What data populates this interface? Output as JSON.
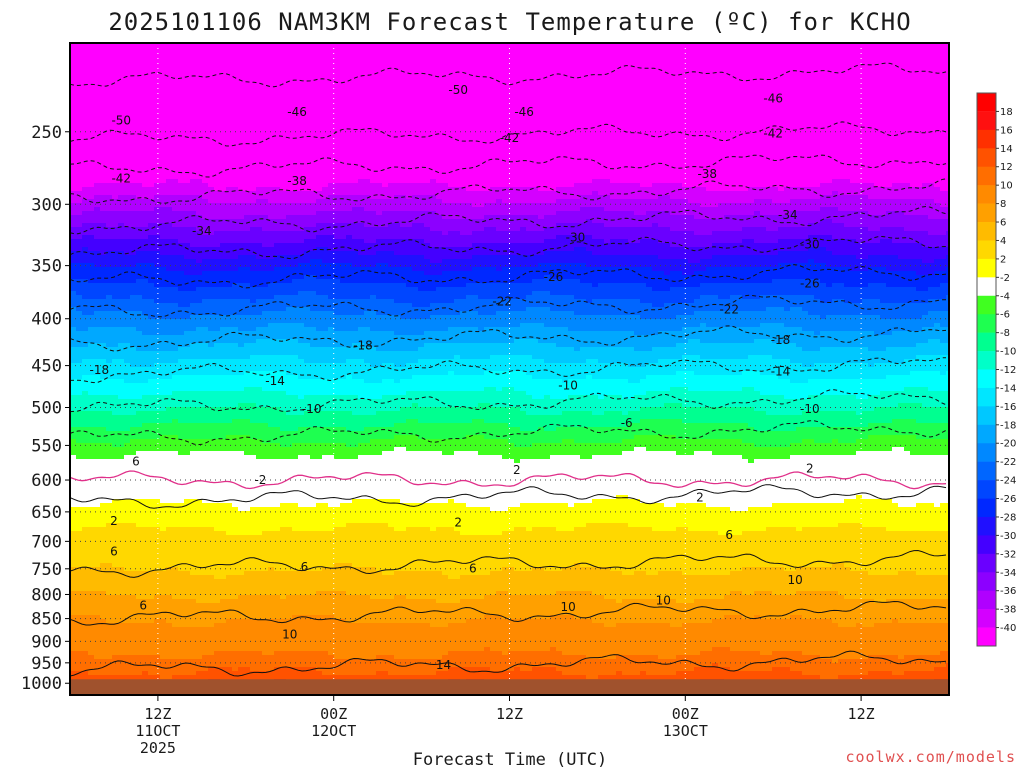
{
  "chart_data": {
    "type": "heatmap",
    "title": "2025101106 NAM3KM Forecast Temperature (ºC) for KCHO",
    "xlabel": "Forecast Time (UTC)",
    "ylabel": "",
    "y_scale": "log-pressure",
    "ylim": [
      1030,
      200
    ],
    "y_ticks": [
      250,
      300,
      350,
      400,
      450,
      500,
      550,
      600,
      650,
      700,
      750,
      800,
      850,
      900,
      950,
      1000
    ],
    "x_ticks": [
      {
        "line1": "12Z",
        "line2": "11OCT",
        "line3": "2025",
        "hour": 6
      },
      {
        "line1": "00Z",
        "line2": "12OCT",
        "line3": "",
        "hour": 18
      },
      {
        "line1": "12Z",
        "line2": "",
        "line3": "",
        "hour": 30
      },
      {
        "line1": "00Z",
        "line2": "13OCT",
        "line3": "",
        "hour": 42
      },
      {
        "line1": "12Z",
        "line2": "",
        "line3": "",
        "hour": 54
      }
    ],
    "xlim": [
      0,
      60
    ],
    "ground_level_hPa": 990,
    "colorbar": {
      "step": 2,
      "min": -40,
      "max": 18,
      "labels": [
        "18",
        "16",
        "14",
        "12",
        "10",
        "8",
        "6",
        "4",
        "2",
        "-2",
        "-4",
        "-6",
        "-8",
        "-10",
        "-12",
        "-14",
        "-16",
        "-18",
        "-20",
        "-22",
        "-24",
        "-26",
        "-28",
        "-30",
        "-32",
        "-34",
        "-36",
        "-38",
        "-40"
      ],
      "colors": [
        "#ff1010",
        "#ff3000",
        "#ff5200",
        "#ff6e00",
        "#ff8a00",
        "#ffa000",
        "#ffbb00",
        "#ffd800",
        "#ffff00",
        "#ffffff",
        "#40ff20",
        "#1eff50",
        "#00ff90",
        "#00ffc8",
        "#00ffff",
        "#00e6ff",
        "#00c8ff",
        "#00a8ff",
        "#0088ff",
        "#0066ff",
        "#0046ff",
        "#0028ff",
        "#2010ff",
        "#4400ff",
        "#6a00ff",
        "#8c00ff",
        "#b000ff",
        "#d400ff",
        "#ff00ff"
      ]
    },
    "contour_levels": [
      -50,
      -46,
      -42,
      -38,
      -34,
      -30,
      -26,
      -22,
      -18,
      -14,
      -10,
      -6,
      2,
      6,
      10,
      14
    ],
    "temperature_profile": [
      {
        "p": 200,
        "t": -52
      },
      {
        "p": 250,
        "t": -47
      },
      {
        "p": 300,
        "t": -37
      },
      {
        "p": 350,
        "t": -28
      },
      {
        "p": 400,
        "t": -21
      },
      {
        "p": 450,
        "t": -15
      },
      {
        "p": 500,
        "t": -10
      },
      {
        "p": 550,
        "t": -5
      },
      {
        "p": 600,
        "t": 0
      },
      {
        "p": 650,
        "t": 3
      },
      {
        "p": 700,
        "t": 5
      },
      {
        "p": 750,
        "t": 6
      },
      {
        "p": 800,
        "t": 8
      },
      {
        "p": 850,
        "t": 10
      },
      {
        "p": 900,
        "t": 11
      },
      {
        "p": 950,
        "t": 13
      },
      {
        "p": 1000,
        "t": 16
      }
    ],
    "contour_label_positions": [
      {
        "text": "-50",
        "hour": 3.5,
        "p": 243
      },
      {
        "text": "-50",
        "hour": 26.5,
        "p": 225
      },
      {
        "text": "-46",
        "hour": 15.5,
        "p": 238
      },
      {
        "text": "-46",
        "hour": 31,
        "p": 238
      },
      {
        "text": "-46",
        "hour": 48,
        "p": 230
      },
      {
        "text": "-42",
        "hour": 3.5,
        "p": 281
      },
      {
        "text": "-42",
        "hour": 30,
        "p": 254
      },
      {
        "text": "-42",
        "hour": 48,
        "p": 251
      },
      {
        "text": "-38",
        "hour": 15.5,
        "p": 283
      },
      {
        "text": "-38",
        "hour": 43.5,
        "p": 278
      },
      {
        "text": "-34",
        "hour": 9,
        "p": 321
      },
      {
        "text": "-34",
        "hour": 49,
        "p": 308
      },
      {
        "text": "-30",
        "hour": 34.5,
        "p": 326
      },
      {
        "text": "-30",
        "hour": 50.5,
        "p": 332
      },
      {
        "text": "-26",
        "hour": 33,
        "p": 360
      },
      {
        "text": "-26",
        "hour": 50.5,
        "p": 366
      },
      {
        "text": "-22",
        "hour": 29.5,
        "p": 383
      },
      {
        "text": "-22",
        "hour": 45,
        "p": 391
      },
      {
        "text": "-18",
        "hour": 2,
        "p": 455
      },
      {
        "text": "-18",
        "hour": 20,
        "p": 428
      },
      {
        "text": "-18",
        "hour": 48.5,
        "p": 422
      },
      {
        "text": "-14",
        "hour": 14,
        "p": 468
      },
      {
        "text": "-14",
        "hour": 48.5,
        "p": 457
      },
      {
        "text": "-10",
        "hour": 16.5,
        "p": 502
      },
      {
        "text": "-10",
        "hour": 34,
        "p": 473
      },
      {
        "text": "-10",
        "hour": 50.5,
        "p": 502
      },
      {
        "text": "-6",
        "hour": 38,
        "p": 520
      },
      {
        "text": "6",
        "hour": 4.5,
        "p": 573
      },
      {
        "text": "2",
        "hour": 30.5,
        "p": 585
      },
      {
        "text": "2",
        "hour": 50.5,
        "p": 583
      },
      {
        "text": "-2",
        "hour": 13,
        "p": 600
      },
      {
        "text": "2",
        "hour": 3,
        "p": 665
      },
      {
        "text": "2",
        "hour": 26.5,
        "p": 668
      },
      {
        "text": "2",
        "hour": 43,
        "p": 627
      },
      {
        "text": "6",
        "hour": 3,
        "p": 718
      },
      {
        "text": "6",
        "hour": 16,
        "p": 747
      },
      {
        "text": "6",
        "hour": 27.5,
        "p": 749
      },
      {
        "text": "6",
        "hour": 45,
        "p": 689
      },
      {
        "text": "6",
        "hour": 5,
        "p": 823
      },
      {
        "text": "10",
        "hour": 49.5,
        "p": 771
      },
      {
        "text": "10",
        "hour": 34,
        "p": 826
      },
      {
        "text": "10",
        "hour": 40.5,
        "p": 812
      },
      {
        "text": "10",
        "hour": 15,
        "p": 885
      },
      {
        "text": "14",
        "hour": 25.5,
        "p": 955
      }
    ],
    "credit": "coolwx.com/models"
  }
}
